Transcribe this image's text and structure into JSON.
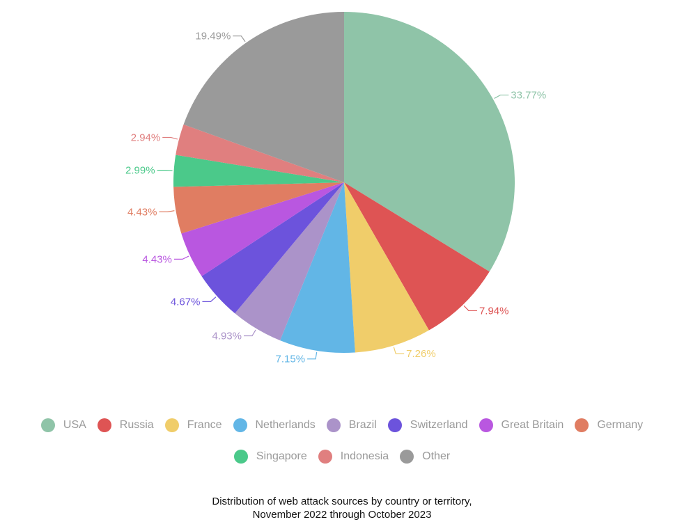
{
  "chart_data": {
    "type": "pie",
    "title_lines": [
      "Distribution of web attack sources by country or territory,",
      "November 2022 through October 2023"
    ],
    "slices": [
      {
        "name": "USA",
        "value": 33.77,
        "label": "33.77%",
        "color": "#8fc4a8"
      },
      {
        "name": "Russia",
        "value": 7.94,
        "label": "7.94%",
        "color": "#de5454"
      },
      {
        "name": "France",
        "value": 7.26,
        "label": "7.26%",
        "color": "#f0cd6a"
      },
      {
        "name": "Netherlands",
        "value": 7.15,
        "label": "7.15%",
        "color": "#62b6e6"
      },
      {
        "name": "Brazil",
        "value": 4.93,
        "label": "4.93%",
        "color": "#ab93c9"
      },
      {
        "name": "Switzerland",
        "value": 4.67,
        "label": "4.67%",
        "color": "#6c53dc"
      },
      {
        "name": "Great Britain",
        "value": 4.43,
        "label": "4.43%",
        "color": "#b957e0"
      },
      {
        "name": "Germany",
        "value": 4.43,
        "label": "4.43%",
        "color": "#e07d62"
      },
      {
        "name": "Singapore",
        "value": 2.99,
        "label": "2.99%",
        "color": "#4bc98a"
      },
      {
        "name": "Indonesia",
        "value": 2.94,
        "label": "2.94%",
        "color": "#e07f7f"
      },
      {
        "name": "Other",
        "value": 19.49,
        "label": "19.49%",
        "color": "#9a9a9a"
      }
    ],
    "legend_placement": "bottom",
    "start_angle": "top",
    "direction": "clockwise"
  }
}
